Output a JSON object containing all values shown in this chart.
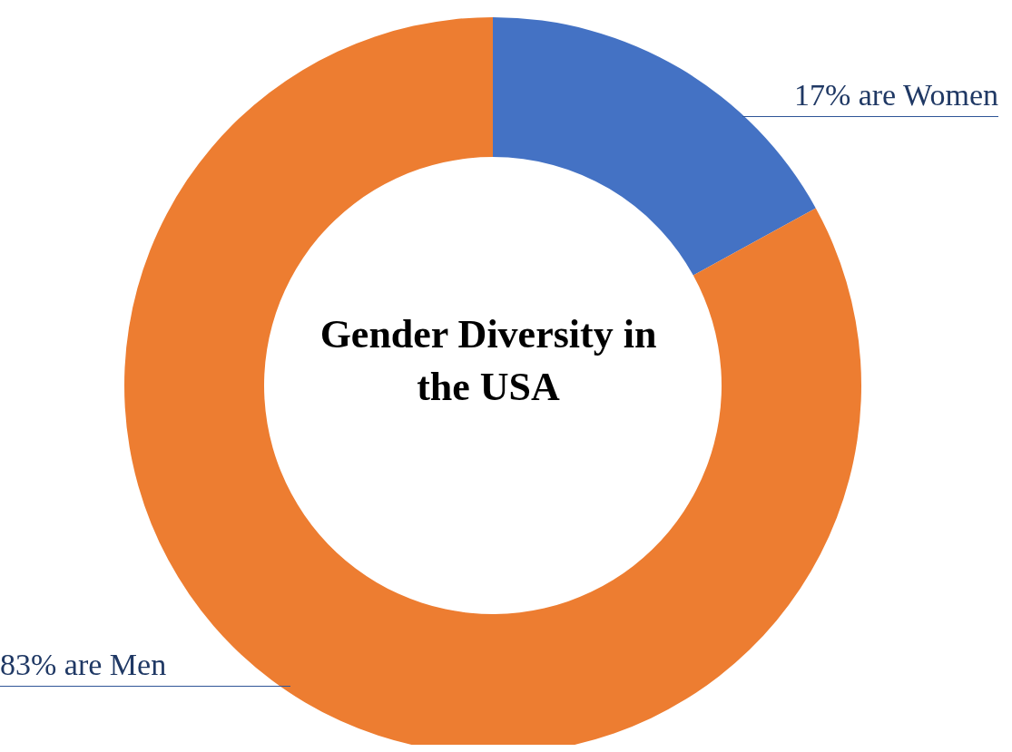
{
  "chart_data": {
    "type": "donut",
    "title": "Gender Diversity in the USA",
    "categories": [
      "17% are Women",
      "83% are Men"
    ],
    "values": [
      17,
      83
    ],
    "colors": [
      "#4472c4",
      "#ed7d31"
    ]
  }
}
